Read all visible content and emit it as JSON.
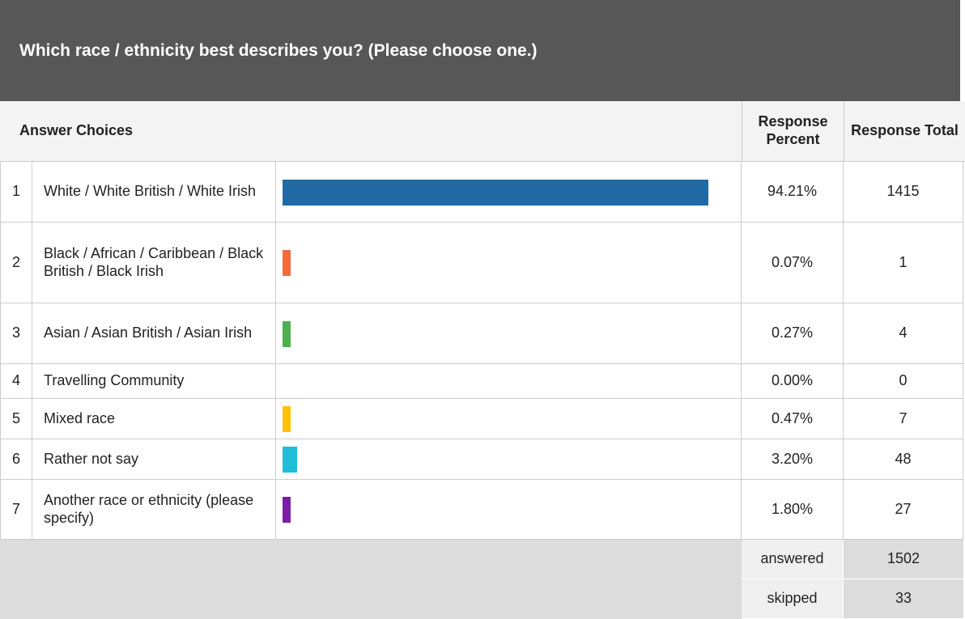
{
  "title": "Which race / ethnicity best describes you? (Please choose one.)",
  "table": {
    "headers": [
      "Answer Choices",
      "Response Percent",
      "Response Total"
    ],
    "rows": [
      {
        "index": 1,
        "choice": "White / White British / White Irish",
        "percent": 94.21,
        "percent_label": "94.21%",
        "total": 1415,
        "color": "#1f6aa5"
      },
      {
        "index": 2,
        "choice": "Black / African / Caribbean / Black British / Black Irish",
        "percent": 0.07,
        "percent_label": "0.07%",
        "total": 1,
        "color": "#f26b38"
      },
      {
        "index": 3,
        "choice": "Asian / Asian British / Asian Irish",
        "percent": 0.27,
        "percent_label": "0.27%",
        "total": 4,
        "color": "#4cb050"
      },
      {
        "index": 4,
        "choice": "Travelling Community",
        "percent": 0.0,
        "percent_label": "0.00%",
        "total": 0,
        "color": "#999999"
      },
      {
        "index": 5,
        "choice": "Mixed race",
        "percent": 0.47,
        "percent_label": "0.47%",
        "total": 7,
        "color": "#ffc107"
      },
      {
        "index": 6,
        "choice": "Rather not say",
        "percent": 3.2,
        "percent_label": "3.20%",
        "total": 48,
        "color": "#1ebfd6"
      },
      {
        "index": 7,
        "choice": "Another race or ethnicity (please specify)",
        "percent": 1.8,
        "percent_label": "1.80%",
        "total": 27,
        "color": "#7b1fa2"
      }
    ],
    "footer": [
      {
        "label": "answered",
        "value": 1502
      },
      {
        "label": "skipped",
        "value": 33
      }
    ]
  }
}
